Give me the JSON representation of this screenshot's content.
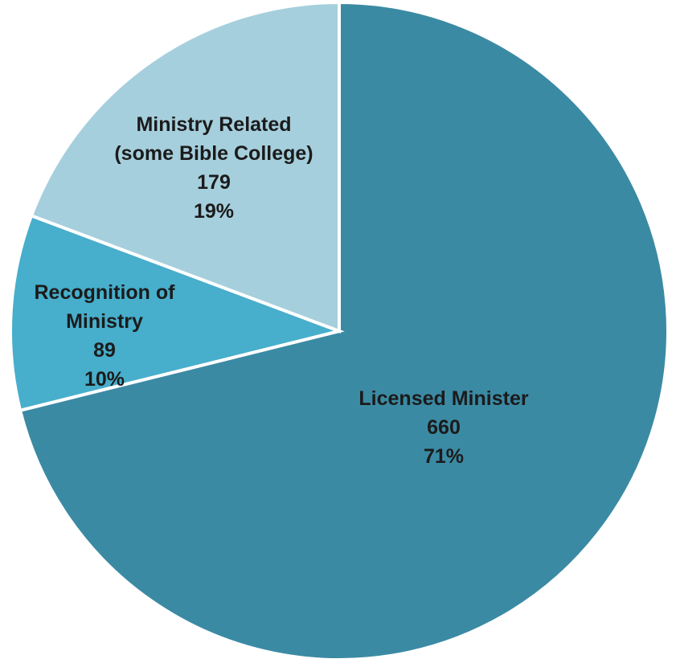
{
  "chart_data": {
    "type": "pie",
    "start_angle_deg": 0,
    "direction": "clockwise",
    "slices": [
      {
        "name": "Licensed Minister",
        "label_lines": [
          "Licensed Minister"
        ],
        "value": 660,
        "percent_label": "71%",
        "color": "#3b8aa4"
      },
      {
        "name": "Recognition of Ministry",
        "label_lines": [
          "Recognition of",
          "Ministry"
        ],
        "value": 89,
        "percent_label": "10%",
        "color": "#47aecb"
      },
      {
        "name": "Ministry Related (some Bible College)",
        "label_lines": [
          "Ministry Related",
          "(some Bible College)"
        ],
        "value": 179,
        "percent_label": "19%",
        "color": "#a6cfdd"
      }
    ],
    "legend": "none",
    "data_labels": "inside"
  }
}
